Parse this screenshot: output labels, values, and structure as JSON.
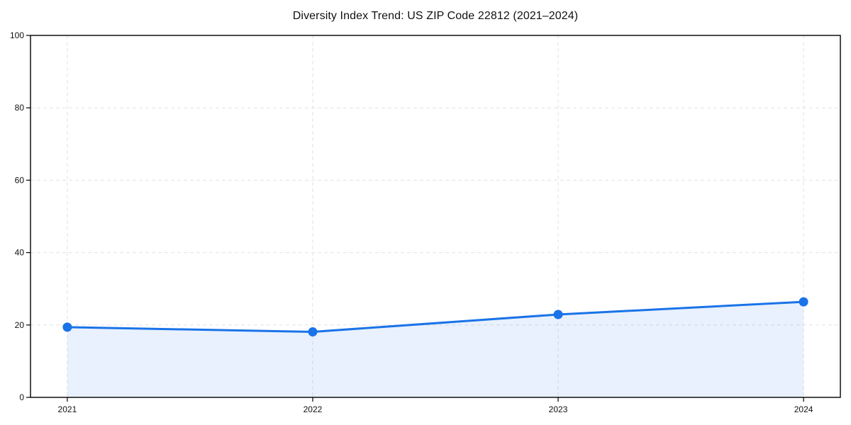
{
  "title": "Diversity Index Trend: US ZIP Code 22812 (2021–2024)",
  "colors": {
    "line": "#1a73e8",
    "marker": "#1a73e8",
    "area_fill": "rgba(26,115,232,0.10)",
    "grid": "#e2e2e2",
    "spine": "#000000",
    "tick_text": "#111111",
    "background": "#ffffff"
  },
  "chart_data": {
    "type": "area",
    "title": "Diversity Index Trend: US ZIP Code 22812 (2021–2024)",
    "series_name": "Diversity Index",
    "x": [
      2021,
      2022,
      2023,
      2024
    ],
    "values": [
      19.4,
      18.1,
      22.9,
      26.4
    ],
    "xlabel": "",
    "ylabel": "",
    "xlim": [
      2020.85,
      2024.15
    ],
    "ylim": [
      0,
      100
    ],
    "yticks": [
      0,
      20,
      40,
      60,
      80,
      100
    ],
    "xticks": [
      2021,
      2022,
      2023,
      2024
    ],
    "grid": true,
    "grid_style": "dashed",
    "legend_position": "none",
    "marker": "circle"
  }
}
